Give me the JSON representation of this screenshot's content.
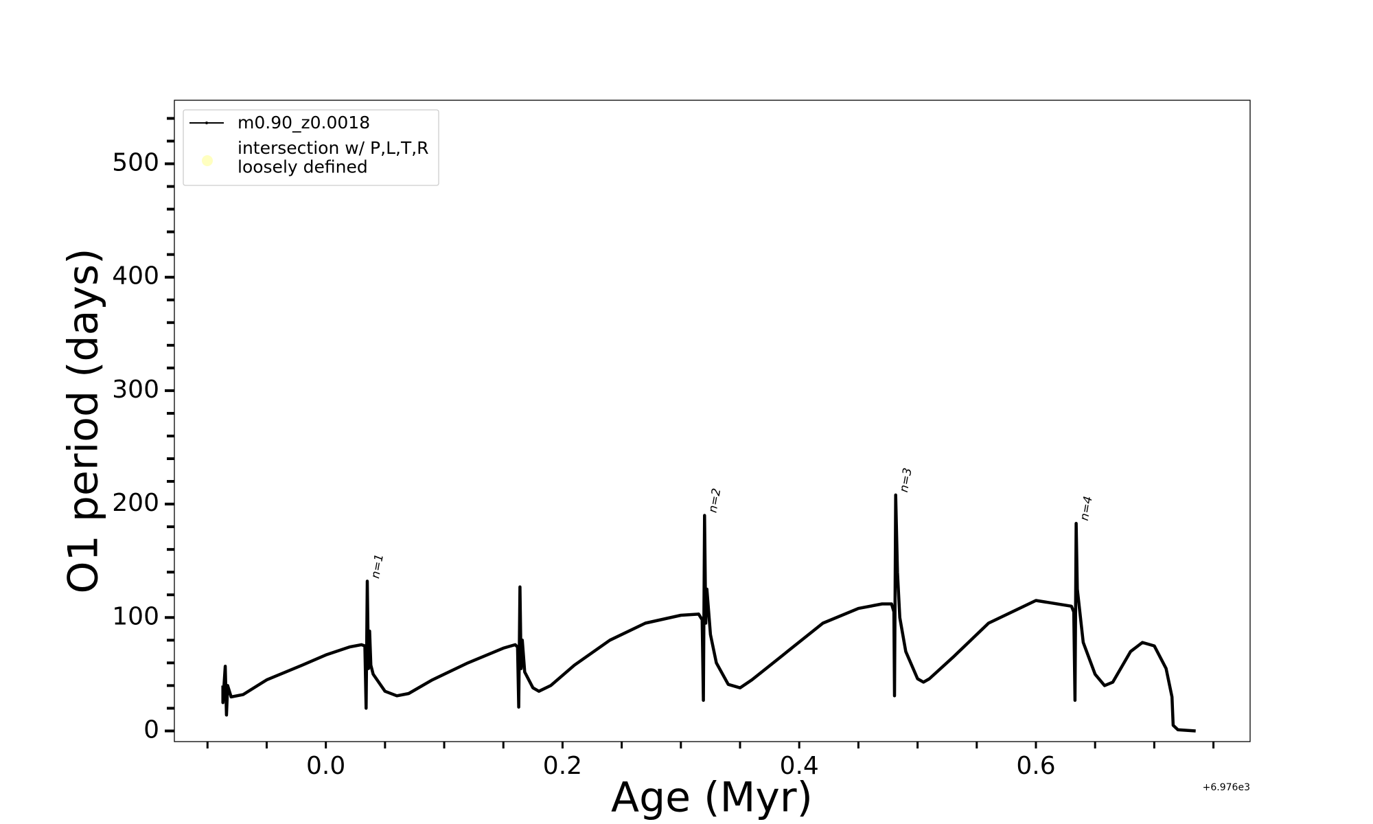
{
  "chart_data": {
    "type": "line",
    "xlabel": "Age (Myr)",
    "ylabel": "O1 period (days)",
    "x_offset_text": "+6.976e3",
    "xlim": [
      -0.128,
      0.781
    ],
    "ylim": [
      -9.4,
      556
    ],
    "xticks": [
      {
        "value": 0,
        "label": "0.0"
      },
      {
        "value": 0.2,
        "label": "0.2"
      },
      {
        "value": 0.4,
        "label": "0.4"
      },
      {
        "value": 0.6,
        "label": "0.6"
      }
    ],
    "xminor_ticks": [
      -0.1,
      -0.05,
      0.05,
      0.1,
      0.15,
      0.25,
      0.3,
      0.35,
      0.45,
      0.5,
      0.55,
      0.65,
      0.7,
      0.75
    ],
    "yticks": [
      0,
      100,
      200,
      300,
      400,
      500
    ],
    "yminor_ticks": [
      20,
      40,
      60,
      80,
      120,
      140,
      160,
      180,
      220,
      240,
      260,
      280,
      320,
      340,
      360,
      380,
      420,
      440,
      460,
      480,
      520,
      540
    ],
    "legend": "upper left",
    "x": [
      -0.087,
      -0.087,
      -0.085,
      -0.084,
      -0.083,
      -0.08,
      -0.07,
      -0.05,
      -0.02,
      0.0,
      0.02,
      0.03,
      0.033,
      0.034,
      0.035,
      0.036,
      0.037,
      0.038,
      0.04,
      0.05,
      0.06,
      0.07,
      0.09,
      0.12,
      0.15,
      0.16,
      0.162,
      0.163,
      0.164,
      0.165,
      0.166,
      0.168,
      0.175,
      0.18,
      0.19,
      0.21,
      0.24,
      0.27,
      0.3,
      0.315,
      0.318,
      0.319,
      0.32,
      0.321,
      0.322,
      0.325,
      0.33,
      0.34,
      0.35,
      0.36,
      0.39,
      0.42,
      0.45,
      0.47,
      0.478,
      0.48,
      0.4805,
      0.4815,
      0.483,
      0.485,
      0.49,
      0.5,
      0.505,
      0.51,
      0.53,
      0.56,
      0.6,
      0.63,
      0.632,
      0.633,
      0.634,
      0.635,
      0.64,
      0.65,
      0.658,
      0.665,
      0.68,
      0.69,
      0.7,
      0.71,
      0.715,
      0.716,
      0.72,
      0.735
    ],
    "series": [
      {
        "name": "m0.90_z0.0018",
        "color": "#000000",
        "values": [
          40,
          25,
          57,
          14,
          40,
          30,
          32,
          45,
          58,
          67,
          74,
          76,
          75,
          20,
          132,
          55,
          88,
          58,
          50,
          35,
          31,
          33,
          45,
          60,
          73,
          76,
          74,
          21,
          127,
          55,
          80,
          52,
          38,
          35,
          40,
          58,
          80,
          95,
          102,
          103,
          98,
          27,
          190,
          95,
          125,
          85,
          60,
          41,
          38,
          45,
          70,
          95,
          108,
          112,
          112,
          105,
          31,
          208,
          140,
          100,
          70,
          46,
          43,
          46,
          65,
          95,
          115,
          110,
          105,
          27,
          183,
          125,
          78,
          50,
          40,
          43,
          70,
          78,
          75,
          55,
          30,
          5,
          1,
          0
        ]
      },
      {
        "name": "intersection w/ P,L,T,R\nloosely defined",
        "color": "#ffffc0"
      }
    ],
    "annotations": [
      {
        "text": "n=1",
        "x": 0.035,
        "y": 132
      },
      {
        "text": "n=2",
        "x": 0.32,
        "y": 190
      },
      {
        "text": "n=3",
        "x": 0.4815,
        "y": 208
      },
      {
        "text": "n=4",
        "x": 0.634,
        "y": 183
      }
    ]
  }
}
